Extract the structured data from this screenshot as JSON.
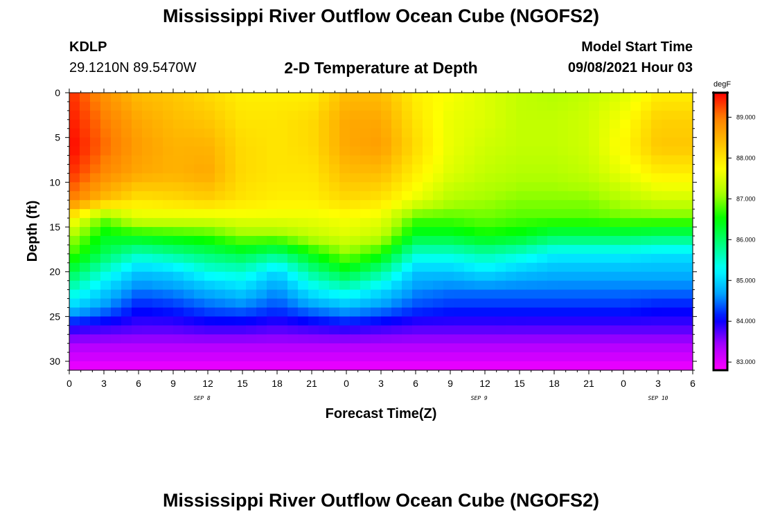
{
  "header": {
    "title": "Mississippi River Outflow Ocean Cube (NGOFS2)",
    "station": "KDLP",
    "coords": "29.1210N  89.5470W",
    "plot_title": "2-D Temperature at Depth",
    "model_start_label": "Model Start Time",
    "model_start_value": "09/08/2021 Hour 03"
  },
  "footer": {
    "title": "Mississippi River Outflow Ocean Cube (NGOFS2)"
  },
  "chart_data": {
    "type": "heatmap",
    "title": "2-D Temperature at Depth",
    "xlabel": "Forecast Time(Z)",
    "ylabel": "Depth (ft)",
    "x_tick_labels": [
      "0",
      "3",
      "6",
      "9",
      "12",
      "15",
      "18",
      "21",
      "0",
      "3",
      "6",
      "9",
      "12",
      "15",
      "18",
      "21",
      "0",
      "3",
      "6"
    ],
    "x_hours": [
      0,
      3,
      6,
      9,
      12,
      15,
      18,
      21,
      24,
      27,
      30,
      33,
      36,
      39,
      42,
      45,
      48,
      51,
      54
    ],
    "xlim_hours": [
      0,
      54
    ],
    "date_labels": [
      {
        "text": "SEP 8",
        "hour": 11.5
      },
      {
        "text": "SEP 9",
        "hour": 35.5
      },
      {
        "text": "SEP 10",
        "hour": 51.0
      }
    ],
    "y_ticks": [
      0,
      5,
      10,
      15,
      20,
      25,
      30
    ],
    "ylim": [
      0,
      31
    ],
    "colorbar": {
      "unit": "degF",
      "min": 82.8,
      "max": 89.6,
      "tick_values": [
        89.0,
        88.0,
        87.0,
        86.0,
        85.0,
        84.0,
        83.0
      ],
      "tick_labels": [
        "89.000",
        "88.000",
        "87.000",
        "86.000",
        "85.000",
        "84.000",
        "83.000"
      ],
      "colors": [
        "#ff00ff",
        "#aa00ff",
        "#0000ff",
        "#00a0ff",
        "#00ffff",
        "#00ff80",
        "#00ff00",
        "#aaff00",
        "#ffff00",
        "#ffc000",
        "#ff8000",
        "#ff0000"
      ]
    },
    "depths_ft": [
      0,
      3,
      6,
      9,
      12,
      14,
      16,
      18,
      20,
      22,
      24,
      26,
      28,
      31
    ],
    "times_hours": [
      0,
      3,
      6,
      9,
      12,
      15,
      18,
      21,
      24,
      27,
      30,
      33,
      36,
      39,
      42,
      45,
      48,
      51,
      54
    ],
    "temperature_degF": [
      [
        89.4,
        88.8,
        88.4,
        88.3,
        88.1,
        87.9,
        87.9,
        87.9,
        88.4,
        88.4,
        87.9,
        87.7,
        87.5,
        87.3,
        87.2,
        87.3,
        87.5,
        87.9,
        87.9
      ],
      [
        89.5,
        89.0,
        88.6,
        88.4,
        88.3,
        88.0,
        88.0,
        88.1,
        88.6,
        88.6,
        88.0,
        87.6,
        87.5,
        87.3,
        87.3,
        87.4,
        87.7,
        88.2,
        88.2
      ],
      [
        89.6,
        89.1,
        88.7,
        88.5,
        88.5,
        88.1,
        88.0,
        88.1,
        88.6,
        88.7,
        88.1,
        87.6,
        87.4,
        87.3,
        87.3,
        87.4,
        87.8,
        88.3,
        88.3
      ],
      [
        89.4,
        88.9,
        88.6,
        88.5,
        88.6,
        88.1,
        88.0,
        88.0,
        88.4,
        88.4,
        87.9,
        87.5,
        87.3,
        87.2,
        87.2,
        87.3,
        87.6,
        87.9,
        87.9
      ],
      [
        89.0,
        88.4,
        88.0,
        88.1,
        88.2,
        88.0,
        87.9,
        87.9,
        88.1,
        88.0,
        87.6,
        87.2,
        87.1,
        87.0,
        87.0,
        87.0,
        87.2,
        87.4,
        87.4
      ],
      [
        87.9,
        86.9,
        87.5,
        87.5,
        87.5,
        87.6,
        87.6,
        87.6,
        87.7,
        87.6,
        86.8,
        86.8,
        86.9,
        86.8,
        86.8,
        86.8,
        86.9,
        86.9,
        86.9
      ],
      [
        87.2,
        86.4,
        86.5,
        86.6,
        86.7,
        87.0,
        87.0,
        87.3,
        87.5,
        87.3,
        86.3,
        86.3,
        86.5,
        86.4,
        86.1,
        86.1,
        86.1,
        86.0,
        86.0
      ],
      [
        86.8,
        86.1,
        85.6,
        85.8,
        86.0,
        86.2,
        85.9,
        86.5,
        87.0,
        86.6,
        85.5,
        85.5,
        85.7,
        85.5,
        85.2,
        85.2,
        85.2,
        85.1,
        85.1
      ],
      [
        86.2,
        85.5,
        84.9,
        85.0,
        85.4,
        85.5,
        85.0,
        85.8,
        86.3,
        85.8,
        84.9,
        84.9,
        85.1,
        84.9,
        84.8,
        84.8,
        84.8,
        84.8,
        84.8
      ],
      [
        85.6,
        85.0,
        84.5,
        84.6,
        84.8,
        85.0,
        84.6,
        85.2,
        85.5,
        85.1,
        84.6,
        84.5,
        84.5,
        84.5,
        84.5,
        84.5,
        84.5,
        84.5,
        84.5
      ],
      [
        85.0,
        84.6,
        84.1,
        84.2,
        84.4,
        84.5,
        84.3,
        84.6,
        84.8,
        84.6,
        84.3,
        84.2,
        84.2,
        84.2,
        84.2,
        84.2,
        84.2,
        84.1,
        84.1
      ],
      [
        84.0,
        83.9,
        83.8,
        83.8,
        83.9,
        83.9,
        83.8,
        83.9,
        84.0,
        83.9,
        83.8,
        83.8,
        83.8,
        83.8,
        83.8,
        83.8,
        83.8,
        83.8,
        83.8
      ],
      [
        83.4,
        83.4,
        83.4,
        83.4,
        83.4,
        83.4,
        83.4,
        83.4,
        83.4,
        83.4,
        83.4,
        83.4,
        83.4,
        83.4,
        83.4,
        83.4,
        83.4,
        83.4,
        83.4
      ],
      [
        82.9,
        82.9,
        82.9,
        82.9,
        82.9,
        82.9,
        82.9,
        82.9,
        82.9,
        82.9,
        82.9,
        82.9,
        82.9,
        82.9,
        82.9,
        82.9,
        82.9,
        82.9,
        82.9
      ]
    ]
  }
}
